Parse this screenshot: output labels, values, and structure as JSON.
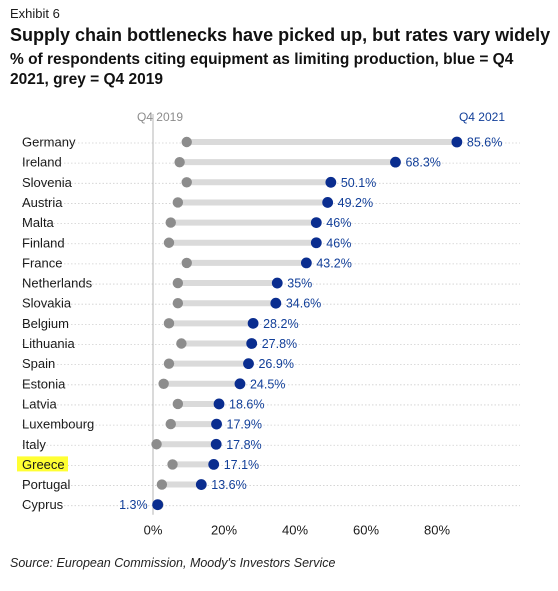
{
  "exhibit": "Exhibit 6",
  "title": "Supply chain bottlenecks have picked up, but rates vary widely",
  "subtitle": "% of respondents citing equipment as limiting production, blue = Q4 2021, grey = Q4 2019",
  "source": "Source: European Commission, Moody's Investors Service",
  "colors": {
    "q4_2021": "#0a2d8f",
    "q4_2019": "#8c8c8c",
    "connector": "#dadada",
    "highlight": "#ffff33",
    "label_blue": "#123f99"
  },
  "chart_data": {
    "type": "dumbbell",
    "title": "Supply chain bottlenecks have picked up, but rates vary widely",
    "subtitle": "% of respondents citing equipment as limiting production, blue = Q4 2021, grey = Q4 2019",
    "xlabel": "",
    "ylabel": "",
    "xlim": [
      0,
      90
    ],
    "x_ticks": [
      "0%",
      "20%",
      "40%",
      "60%",
      "80%"
    ],
    "x_tick_values": [
      0,
      20,
      40,
      60,
      80
    ],
    "highlighted_category": "Greece",
    "categories": [
      "Germany",
      "Ireland",
      "Slovenia",
      "Austria",
      "Malta",
      "Finland",
      "France",
      "Netherlands",
      "Slovakia",
      "Belgium",
      "Lithuania",
      "Spain",
      "Estonia",
      "Latvia",
      "Luxembourg",
      "Italy",
      "Greece",
      "Portugal",
      "Cyprus"
    ],
    "series": [
      {
        "name": "Q4 2021",
        "values": [
          85.6,
          68.3,
          50.1,
          49.2,
          46,
          46,
          43.2,
          35,
          34.6,
          28.2,
          27.8,
          26.9,
          24.5,
          18.6,
          17.9,
          17.8,
          17.1,
          13.6,
          1.3
        ],
        "labels": [
          "85.6%",
          "68.3%",
          "50.1%",
          "49.2%",
          "46%",
          "46%",
          "43.2%",
          "35%",
          "34.6%",
          "28.2%",
          "27.8%",
          "26.9%",
          "24.5%",
          "18.6%",
          "17.9%",
          "17.8%",
          "17.1%",
          "13.6%",
          "1.3%"
        ]
      },
      {
        "name": "Q4 2019",
        "values": [
          9.5,
          7.5,
          9.5,
          7.0,
          5.0,
          4.5,
          9.5,
          7.0,
          7.0,
          4.5,
          8.0,
          4.5,
          3.0,
          7.0,
          5.0,
          1.0,
          5.5,
          2.5,
          1.5
        ]
      }
    ]
  }
}
